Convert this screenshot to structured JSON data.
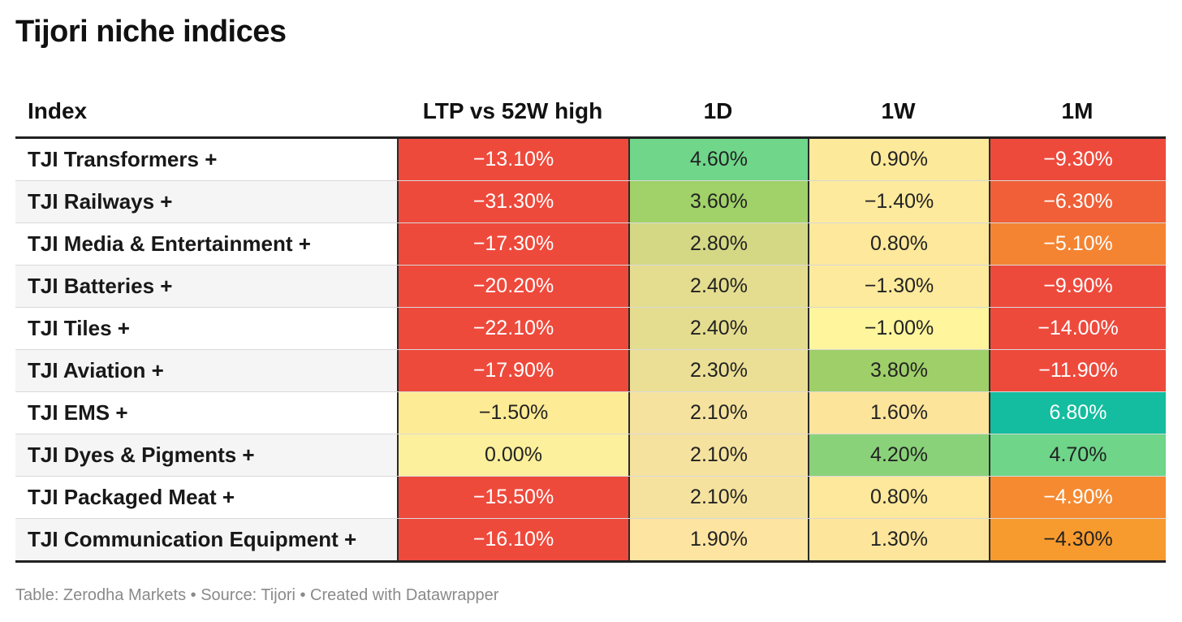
{
  "title": "Tijori niche indices",
  "footer": "Table: Zerodha Markets • Source: Tijori • Created with Datawrapper",
  "chart_data": {
    "type": "table",
    "columns": [
      "Index",
      "LTP vs 52W high",
      "1D",
      "1W",
      "1M"
    ],
    "rows": [
      {
        "index": "TJI Transformers +",
        "ltp": "−13.10%",
        "d1": "4.60%",
        "w1": "0.90%",
        "m1": "−9.30%",
        "colors": [
          "#ee4a3c",
          "#6fd68a",
          "#fde99a",
          "#ee4a3c"
        ],
        "text": [
          "white",
          "dark",
          "dark",
          "white"
        ]
      },
      {
        "index": "TJI Railways +",
        "ltp": "−31.30%",
        "d1": "3.60%",
        "w1": "−1.40%",
        "m1": "−6.30%",
        "colors": [
          "#ee4a3c",
          "#a1d169",
          "#fdea9c",
          "#f05f37"
        ],
        "text": [
          "white",
          "dark",
          "dark",
          "white"
        ]
      },
      {
        "index": "TJI Media & Entertainment +",
        "ltp": "−17.30%",
        "d1": "2.80%",
        "w1": "0.80%",
        "m1": "−5.10%",
        "colors": [
          "#ee4a3c",
          "#d4d884",
          "#fde89b",
          "#f58432"
        ],
        "text": [
          "white",
          "dark",
          "dark",
          "white"
        ]
      },
      {
        "index": "TJI Batteries +",
        "ltp": "−20.20%",
        "d1": "2.40%",
        "w1": "−1.30%",
        "m1": "−9.90%",
        "colors": [
          "#ee4a3c",
          "#e4dd8f",
          "#fdea9c",
          "#ee4a3c"
        ],
        "text": [
          "white",
          "dark",
          "dark",
          "white"
        ]
      },
      {
        "index": "TJI Tiles +",
        "ltp": "−22.10%",
        "d1": "2.40%",
        "w1": "−1.00%",
        "m1": "−14.00%",
        "colors": [
          "#ee4a3c",
          "#e4dd8f",
          "#fef59d",
          "#ee4a3c"
        ],
        "text": [
          "white",
          "dark",
          "dark",
          "white"
        ]
      },
      {
        "index": "TJI Aviation +",
        "ltp": "−17.90%",
        "d1": "2.30%",
        "w1": "3.80%",
        "m1": "−11.90%",
        "colors": [
          "#ee4a3c",
          "#eadf95",
          "#9fcf69",
          "#ee4a3c"
        ],
        "text": [
          "white",
          "dark",
          "dark",
          "white"
        ]
      },
      {
        "index": "TJI EMS +",
        "ltp": "−1.50%",
        "d1": "2.10%",
        "w1": "1.60%",
        "m1": "6.80%",
        "colors": [
          "#feeb95",
          "#f5e29e",
          "#fde49b",
          "#14bd9f"
        ],
        "text": [
          "dark",
          "dark",
          "dark",
          "white"
        ]
      },
      {
        "index": "TJI Dyes & Pigments +",
        "ltp": "0.00%",
        "d1": "2.10%",
        "w1": "4.20%",
        "m1": "4.70%",
        "colors": [
          "#fdf09c",
          "#f5e29e",
          "#8ad27a",
          "#6ed589"
        ],
        "text": [
          "dark",
          "dark",
          "dark",
          "dark"
        ]
      },
      {
        "index": "TJI Packaged Meat +",
        "ltp": "−15.50%",
        "d1": "2.10%",
        "w1": "0.80%",
        "m1": "−4.90%",
        "colors": [
          "#ee4a3c",
          "#f5e29e",
          "#fde89b",
          "#f58a31"
        ],
        "text": [
          "white",
          "dark",
          "dark",
          "white"
        ]
      },
      {
        "index": "TJI Communication Equipment +",
        "ltp": "−16.10%",
        "d1": "1.90%",
        "w1": "1.30%",
        "m1": "−4.30%",
        "colors": [
          "#ee4a3c",
          "#fde4a1",
          "#fde59c",
          "#f89b2f"
        ],
        "text": [
          "white",
          "dark",
          "dark",
          "dark"
        ]
      }
    ]
  }
}
